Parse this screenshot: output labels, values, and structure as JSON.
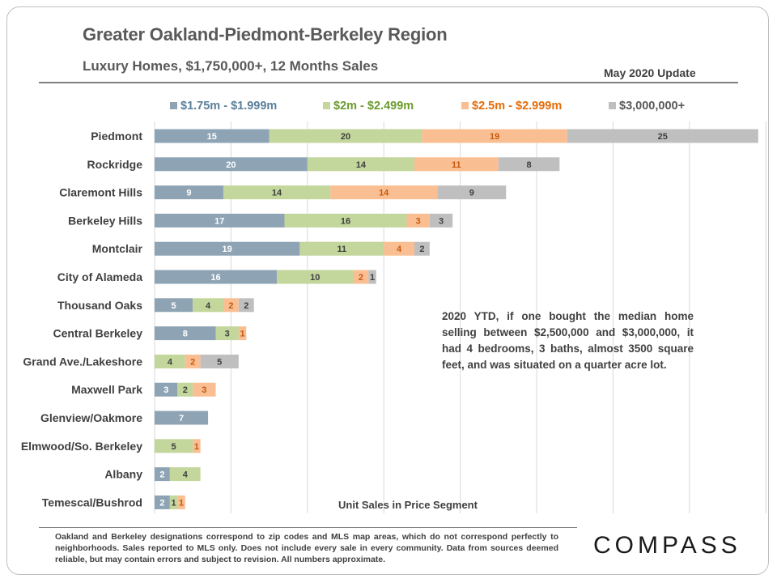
{
  "header": {
    "title": "Greater Oakland-Piedmont-Berkeley Region",
    "subtitle": "Luxury Homes, $1,750,000+, 12 Months Sales",
    "update": "May 2020 Update"
  },
  "annotation": "2020 YTD, if one bought the median home selling between $2,500,000 and $3,000,000, it had 4 bedrooms, 3 baths, almost 3500 square feet, and was situated on a quarter acre lot.",
  "footer": "Oakland and Berkeley designations correspond to zip codes and MLS map areas, which do not correspond perfectly to neighborhoods. Sales reported to MLS only. Does not include every sale in every community. Data from sources deemed reliable, but may contain errors and subject to revision. All numbers approximate.",
  "logo": "COMPASS",
  "colors": {
    "seg1": "#8ea4b5",
    "seg2": "#c3d69b",
    "seg3": "#f9bf92",
    "seg4": "#bfbfbf",
    "legend1": "#5a7f9a",
    "legend2": "#6b9a2e",
    "legend3": "#e46c0a",
    "legend4": "#595959"
  },
  "chart_data": {
    "type": "bar",
    "orientation": "horizontal",
    "stacked": true,
    "xlabel": "Unit Sales in Price Segment",
    "xlim": [
      0,
      80
    ],
    "grid": true,
    "legend_position": "top",
    "categories": [
      "Piedmont",
      "Rockridge",
      "Claremont Hills",
      "Berkeley Hills",
      "Montclair",
      "City of Alameda",
      "Thousand Oaks",
      "Central Berkeley",
      "Grand Ave./Lakeshore",
      "Maxwell Park",
      "Glenview/Oakmore",
      "Elmwood/So. Berkeley",
      "Albany",
      "Temescal/Bushrod"
    ],
    "series": [
      {
        "name": "$1.75m - $1.999m",
        "values": [
          15,
          20,
          9,
          17,
          19,
          16,
          5,
          8,
          0,
          3,
          7,
          0,
          2,
          2
        ]
      },
      {
        "name": "$2m - $2.499m",
        "values": [
          20,
          14,
          14,
          16,
          11,
          10,
          4,
          3,
          4,
          2,
          0,
          5,
          4,
          1
        ]
      },
      {
        "name": "$2.5m - $2.999m",
        "values": [
          19,
          11,
          14,
          3,
          4,
          2,
          2,
          1,
          2,
          3,
          0,
          1,
          0,
          1
        ]
      },
      {
        "name": "$3,000,000+",
        "values": [
          25,
          8,
          9,
          3,
          2,
          1,
          2,
          0,
          5,
          0,
          0,
          0,
          0,
          0
        ]
      }
    ]
  }
}
